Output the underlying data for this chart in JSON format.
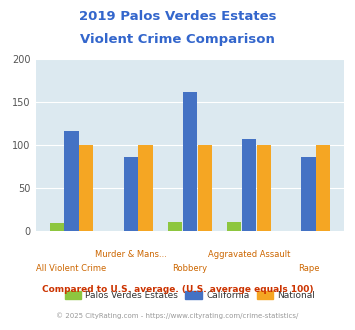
{
  "title_line1": "2019 Palos Verdes Estates",
  "title_line2": "Violent Crime Comparison",
  "title_color": "#3366cc",
  "pve_values": [
    9,
    0,
    10,
    10,
    0
  ],
  "ca_values": [
    117,
    86,
    162,
    107,
    86
  ],
  "nat_values": [
    100,
    100,
    100,
    100,
    100
  ],
  "pve_color": "#8dc63f",
  "ca_color": "#4472c4",
  "nat_color": "#f5a623",
  "ylim": [
    0,
    200
  ],
  "yticks": [
    0,
    50,
    100,
    150,
    200
  ],
  "plot_bg": "#dce9f0",
  "legend_labels": [
    "Palos Verdes Estates",
    "California",
    "National"
  ],
  "row1_indices": [
    1,
    3
  ],
  "row1_names": [
    "Murder & Mans...",
    "Aggravated Assault"
  ],
  "row2_indices": [
    0,
    2,
    4
  ],
  "row2_names": [
    "All Violent Crime",
    "Robbery",
    "Rape"
  ],
  "footnote1": "Compared to U.S. average. (U.S. average equals 100)",
  "footnote2": "© 2025 CityRating.com - https://www.cityrating.com/crime-statistics/",
  "footnote1_color": "#cc3300",
  "footnote2_color": "#999999",
  "xlabel_color": "#cc6600"
}
